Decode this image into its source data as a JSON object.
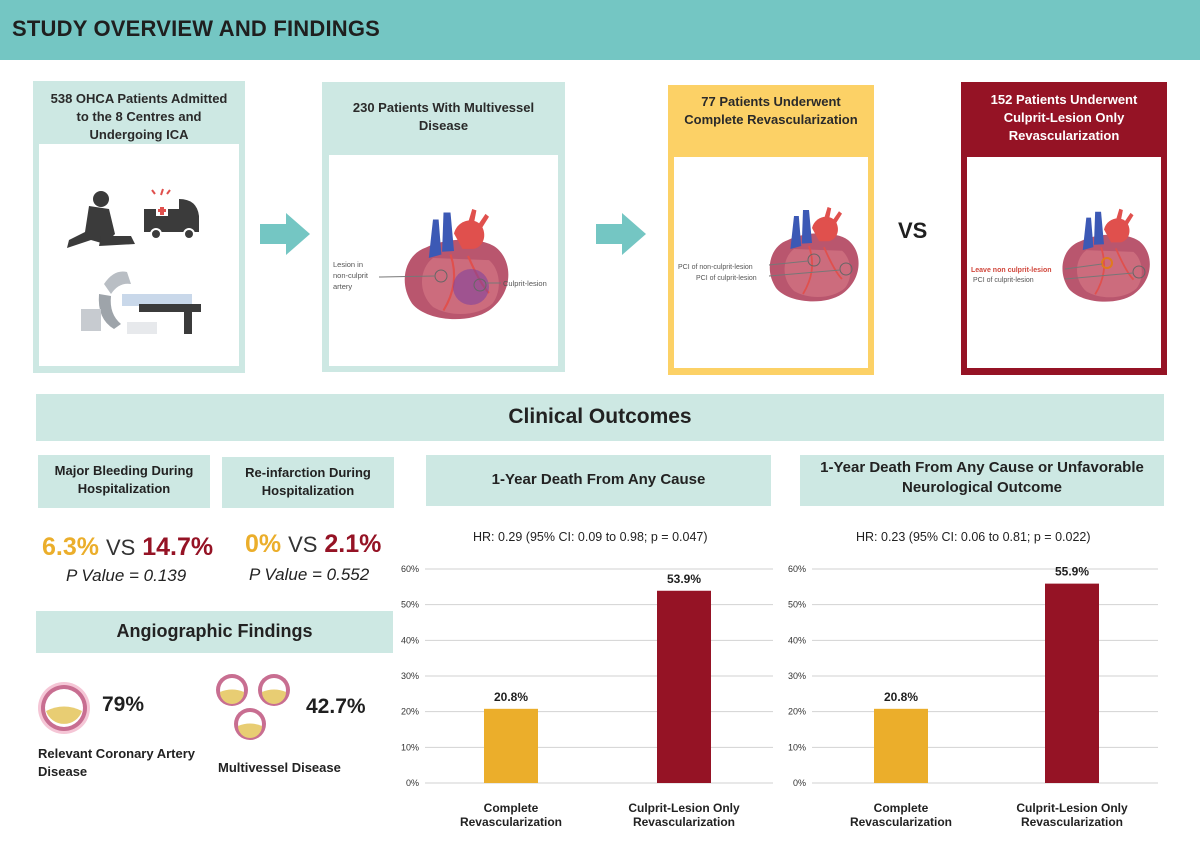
{
  "header": {
    "title": "STUDY OVERVIEW AND FINDINGS"
  },
  "flow": {
    "step1": {
      "title": "538 OHCA Patients Admitted to the 8 Centres and Undergoing ICA"
    },
    "step2": {
      "title": "230 Patients With Multivessel Disease",
      "label_lesion": [
        "Lesion in",
        "non-culprit",
        "artery"
      ],
      "label_culprit": "Culprit-lesion"
    },
    "step3": {
      "title": "77 Patients Underwent Complete Revascularization",
      "label_pci_nonculprit": "PCI of non-culprit-lesion",
      "label_pci_culprit": "PCI of culprit-lesion"
    },
    "vs": "VS",
    "step4": {
      "title": "152 Patients Underwent Culprit-Lesion Only Revascularization",
      "label_leave": "Leave non culprit-lesion",
      "label_pci_culprit": "PCI of culprit-lesion"
    }
  },
  "clinical_outcomes": {
    "title": "Clinical Outcomes",
    "bleeding": {
      "label": "Major Bleeding During Hospitalization",
      "value_complete": "6.3%",
      "vs": "VS",
      "value_culprit": "14.7%",
      "pvalue": "P Value = 0.139"
    },
    "reinfarction": {
      "label": "Re-infarction During Hospitalization",
      "value_complete": "0%",
      "vs": "VS",
      "value_culprit": "2.1%",
      "pvalue": "P Value = 0.552"
    }
  },
  "angiographic": {
    "title": "Angiographic Findings",
    "coronary": {
      "value": "79%",
      "label": "Relevant Coronary Artery Disease"
    },
    "multivessel": {
      "value": "42.7%",
      "label": "Multivessel Disease"
    }
  },
  "colors": {
    "complete": "#ebae2b",
    "culprit": "#951325",
    "teal": "#74c6c3",
    "teal_light": "#cde8e3"
  },
  "chart_data": [
    {
      "type": "bar",
      "title": "1-Year Death From Any Cause",
      "subtitle": "HR: 0.29 (95% CI: 0.09 to 0.98; p = 0.047)",
      "categories": [
        "Complete Revascularization",
        "Culprit-Lesion Only Revascularization"
      ],
      "category_lines": [
        [
          "Complete",
          "Revascularization"
        ],
        [
          "Culprit-Lesion Only",
          "Revascularization"
        ]
      ],
      "values": [
        20.8,
        53.9
      ],
      "value_labels": [
        "20.8%",
        "53.9%"
      ],
      "ylim": [
        0,
        60
      ],
      "yticks": [
        "0%",
        "10%",
        "20%",
        "30%",
        "40%",
        "50%",
        "60%"
      ],
      "grid": true
    },
    {
      "type": "bar",
      "title": "1-Year Death From Any Cause or Unfavorable Neurological Outcome",
      "subtitle": "HR: 0.23 (95% CI: 0.06 to 0.81; p = 0.022)",
      "categories": [
        "Complete Revascularization",
        "Culprit-Lesion Only Revascularization"
      ],
      "category_lines": [
        [
          "Complete",
          "Revascularization"
        ],
        [
          "Culprit-Lesion Only",
          "Revascularization"
        ]
      ],
      "values": [
        20.8,
        55.9
      ],
      "value_labels": [
        "20.8%",
        "55.9%"
      ],
      "ylim": [
        0,
        60
      ],
      "yticks": [
        "0%",
        "10%",
        "20%",
        "30%",
        "40%",
        "50%",
        "60%"
      ],
      "grid": true
    }
  ]
}
